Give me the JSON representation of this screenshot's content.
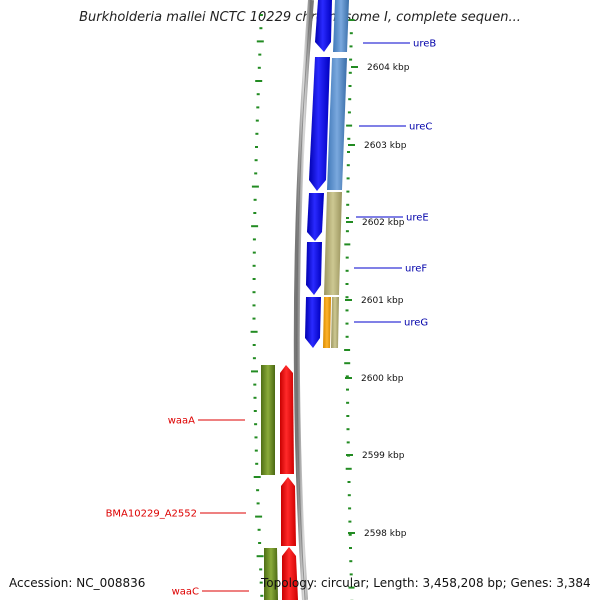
{
  "title": "Burkholderia mallei NCTC 10229 chromosome I, complete sequen...",
  "footer": {
    "accession": "Accession: NC_008836",
    "summary": "Topology: circular; Length: 3,458,208 bp; Genes: 3,384"
  },
  "ticks": [
    {
      "label": "2604 kbp"
    },
    {
      "label": "2603 kbp"
    },
    {
      "label": "2602 kbp"
    },
    {
      "label": "2601 kbp"
    },
    {
      "label": "2600 kbp"
    },
    {
      "label": "2599 kbp"
    },
    {
      "label": "2598 kbp"
    }
  ],
  "genes": [
    {
      "label": "ureB",
      "color": "#00008b"
    },
    {
      "label": "ureC",
      "color": "#00008b"
    },
    {
      "label": "ureE",
      "color": "#00008b"
    },
    {
      "label": "ureF",
      "color": "#00008b"
    },
    {
      "label": "ureG",
      "color": "#00008b"
    },
    {
      "label": "waaA",
      "color": "#cc0000"
    },
    {
      "label": "BMA10229_A2552",
      "color": "#cc0000"
    },
    {
      "label": "waaC",
      "color": "#cc0000"
    }
  ],
  "colors": {
    "forward_cds": "#0000ee",
    "forward_feature_1": "#4f86c6",
    "forward_feature_2": "#b5b07a",
    "forward_feature_3": "#f0a000",
    "reverse_cds": "#ee0000",
    "reverse_feature": "#6b8e23",
    "gc_skew": "#228b22",
    "backbone": "#888888"
  }
}
